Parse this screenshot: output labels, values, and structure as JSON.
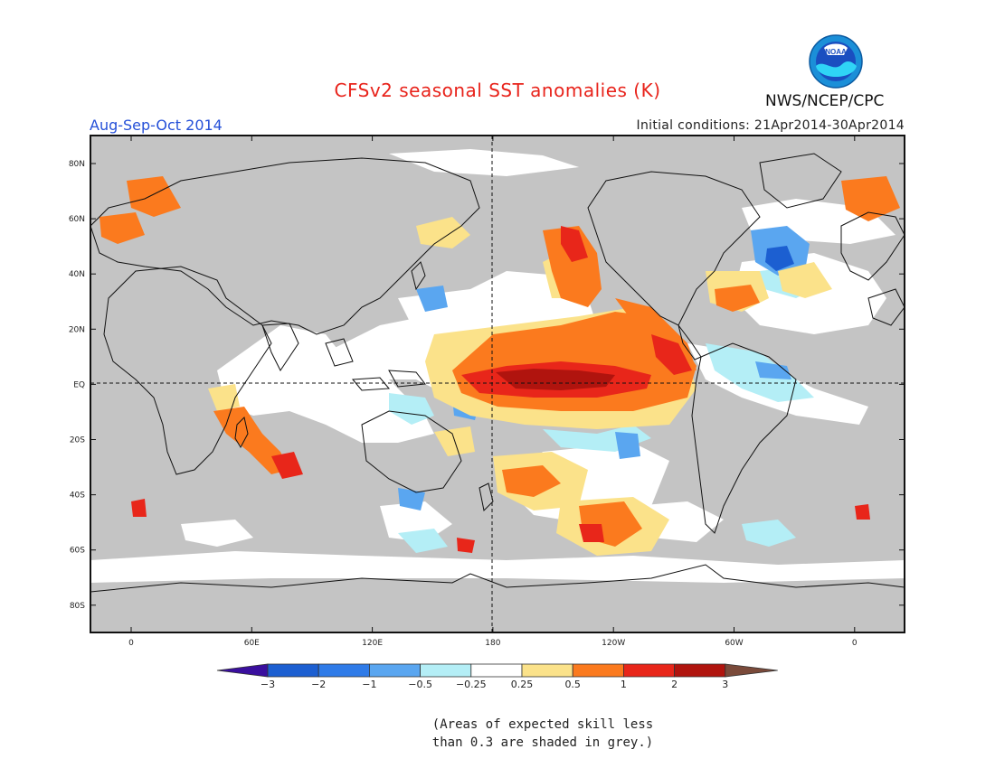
{
  "header": {
    "title": "CFSv2 seasonal SST anomalies (K)",
    "period": "Aug-Sep-Oct 2014",
    "initial_conditions": "Initial conditions: 21Apr2014-30Apr2014",
    "agency": "NWS/NCEP/CPC",
    "logo_text": "NOAA"
  },
  "map": {
    "grey_meaning": "skill < 0.3",
    "lat_labels": [
      "80N",
      "60N",
      "40N",
      "20N",
      "EQ",
      "20S",
      "40S",
      "60S",
      "80S"
    ],
    "lon_labels": [
      "0",
      "60E",
      "120E",
      "180",
      "120W",
      "60W",
      "0"
    ],
    "reference_lines": [
      "equator",
      "180 meridian"
    ]
  },
  "legend": {
    "levels": [
      "-3",
      "-2",
      "-1",
      "-0.5",
      "-0.25",
      "0.25",
      "0.5",
      "1",
      "2",
      "3"
    ],
    "colors": [
      "#3a0f9e",
      "#1c5fd1",
      "#2f7be8",
      "#5aa6f0",
      "#b4eef6",
      "#ffffff",
      "#fbe28a",
      "#fb7a1e",
      "#e8261a",
      "#b0140e",
      "#7a4a3a"
    ]
  },
  "footnote": {
    "line1": "(Areas of expected skill less",
    "line2": "than 0.3 are shaded in grey.)"
  }
}
